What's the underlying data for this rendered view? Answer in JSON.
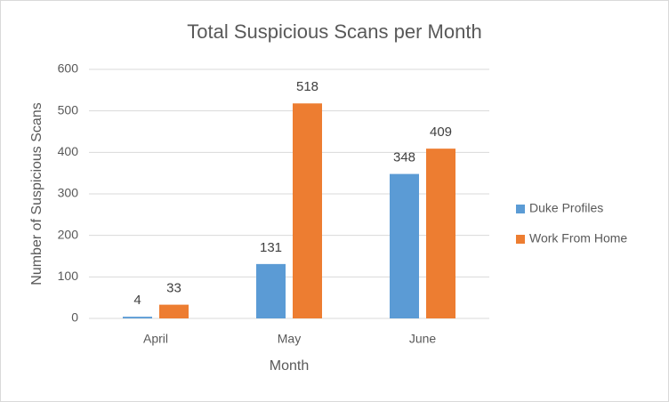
{
  "chart_data": {
    "type": "bar",
    "title": "Total Suspicious Scans per Month",
    "x_label": "Month",
    "y_label": "Number of Suspicious Scans",
    "categories": [
      "April",
      "May",
      "June"
    ],
    "series": [
      {
        "name": "Duke Profiles",
        "color": "#5b9bd5",
        "values": [
          4,
          131,
          348
        ]
      },
      {
        "name": "Work From Home",
        "color": "#ed7d31",
        "values": [
          33,
          518,
          409
        ]
      }
    ],
    "ylim": [
      0,
      600
    ],
    "yticks": [
      0,
      100,
      200,
      300,
      400,
      500,
      600
    ],
    "grid": true,
    "legend": "right"
  }
}
